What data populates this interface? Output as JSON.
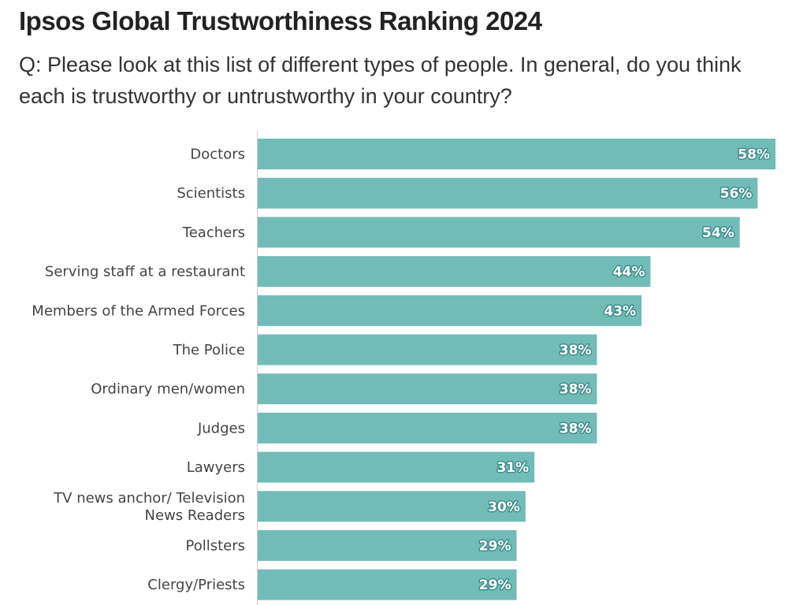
{
  "chart_data": {
    "type": "bar",
    "orientation": "horizontal",
    "title": "Ipsos Global Trustworthiness Ranking 2024",
    "subtitle": "Q: Please look at this list of different types of people. In general, do you think each is trustworthy or untrustworthy in your country?",
    "categories": [
      "Doctors",
      "Scientists",
      "Teachers",
      "Serving staff at a restaurant",
      "Members of the Armed Forces",
      "The Police",
      "Ordinary men/women",
      "Judges",
      "Lawyers",
      "TV news anchor/ Television News Readers",
      "Pollsters",
      "Clergy/Priests"
    ],
    "category_lines": [
      [
        "Doctors"
      ],
      [
        "Scientists"
      ],
      [
        "Teachers"
      ],
      [
        "Serving staff at a restaurant"
      ],
      [
        "Members of the Armed Forces"
      ],
      [
        "The Police"
      ],
      [
        "Ordinary men/women"
      ],
      [
        "Judges"
      ],
      [
        "Lawyers"
      ],
      [
        "TV news anchor/ Television",
        "News Readers"
      ],
      [
        "Pollsters"
      ],
      [
        "Clergy/Priests"
      ]
    ],
    "values": [
      58,
      56,
      54,
      44,
      43,
      38,
      38,
      38,
      31,
      30,
      29,
      29
    ],
    "value_labels": [
      "58%",
      "56%",
      "54%",
      "44%",
      "43%",
      "38%",
      "38%",
      "38%",
      "31%",
      "30%",
      "29%",
      "29%"
    ],
    "unit": "%",
    "xlim": [
      0,
      58
    ],
    "grid": false,
    "bar_color": "#72bcb8",
    "axis_color": "#cccccc"
  }
}
